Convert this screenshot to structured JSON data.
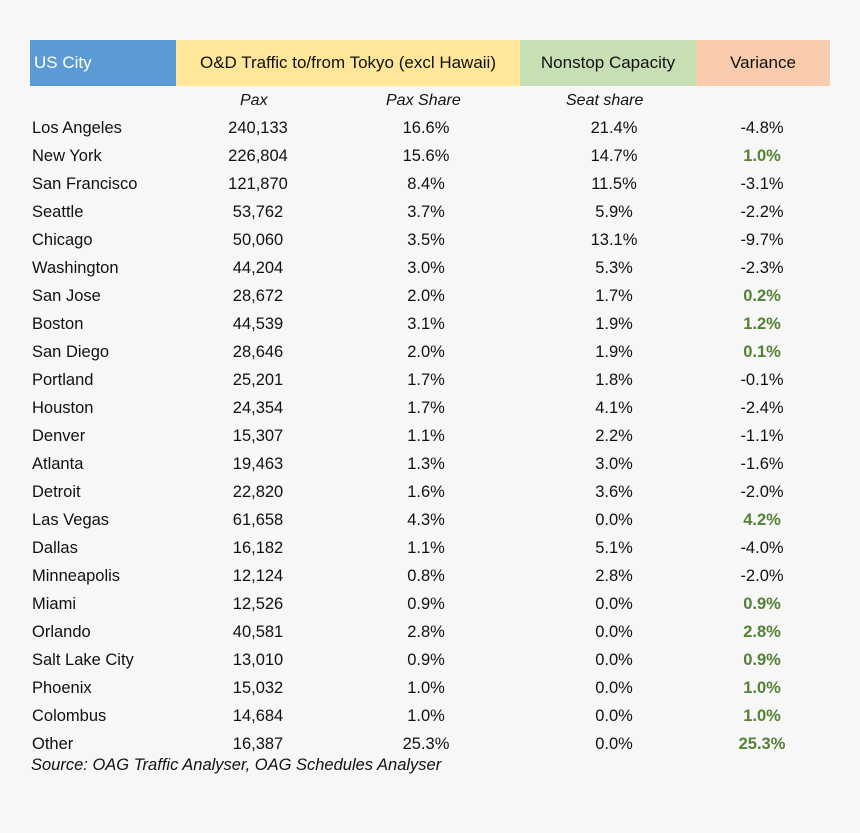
{
  "chart_data": {
    "type": "table",
    "headers": [
      "US City",
      "O&D Traffic to/from Tokyo (excl Hawaii)",
      "Nonstop Capacity",
      "Variance"
    ],
    "subheaders": [
      "Pax",
      "Pax Share",
      "Seat share"
    ],
    "header_colors": [
      "#5b9bd5",
      "#ffe699",
      "#c6e0b4",
      "#f8cbad"
    ],
    "positive_variance_color": "#548235",
    "rows": [
      {
        "city": "Los Angeles",
        "pax": "240,133",
        "pax_share": "16.6%",
        "seat_share": "21.4%",
        "variance": "-4.8%"
      },
      {
        "city": "New York",
        "pax": "226,804",
        "pax_share": "15.6%",
        "seat_share": "14.7%",
        "variance": "1.0%"
      },
      {
        "city": "San Francisco",
        "pax": "121,870",
        "pax_share": "8.4%",
        "seat_share": "11.5%",
        "variance": "-3.1%"
      },
      {
        "city": "Seattle",
        "pax": "53,762",
        "pax_share": "3.7%",
        "seat_share": "5.9%",
        "variance": "-2.2%"
      },
      {
        "city": "Chicago",
        "pax": "50,060",
        "pax_share": "3.5%",
        "seat_share": "13.1%",
        "variance": "-9.7%"
      },
      {
        "city": "Washington",
        "pax": "44,204",
        "pax_share": "3.0%",
        "seat_share": "5.3%",
        "variance": "-2.3%"
      },
      {
        "city": "San Jose",
        "pax": "28,672",
        "pax_share": "2.0%",
        "seat_share": "1.7%",
        "variance": "0.2%"
      },
      {
        "city": "Boston",
        "pax": "44,539",
        "pax_share": "3.1%",
        "seat_share": "1.9%",
        "variance": "1.2%"
      },
      {
        "city": "San Diego",
        "pax": "28,646",
        "pax_share": "2.0%",
        "seat_share": "1.9%",
        "variance": "0.1%"
      },
      {
        "city": "Portland",
        "pax": "25,201",
        "pax_share": "1.7%",
        "seat_share": "1.8%",
        "variance": "-0.1%"
      },
      {
        "city": "Houston",
        "pax": "24,354",
        "pax_share": "1.7%",
        "seat_share": "4.1%",
        "variance": "-2.4%"
      },
      {
        "city": "Denver",
        "pax": "15,307",
        "pax_share": "1.1%",
        "seat_share": "2.2%",
        "variance": "-1.1%"
      },
      {
        "city": "Atlanta",
        "pax": "19,463",
        "pax_share": "1.3%",
        "seat_share": "3.0%",
        "variance": "-1.6%"
      },
      {
        "city": "Detroit",
        "pax": "22,820",
        "pax_share": "1.6%",
        "seat_share": "3.6%",
        "variance": "-2.0%"
      },
      {
        "city": "Las Vegas",
        "pax": "61,658",
        "pax_share": "4.3%",
        "seat_share": "0.0%",
        "variance": "4.2%"
      },
      {
        "city": "Dallas",
        "pax": "16,182",
        "pax_share": "1.1%",
        "seat_share": "5.1%",
        "variance": "-4.0%"
      },
      {
        "city": "Minneapolis",
        "pax": "12,124",
        "pax_share": "0.8%",
        "seat_share": "2.8%",
        "variance": "-2.0%"
      },
      {
        "city": "Miami",
        "pax": "12,526",
        "pax_share": "0.9%",
        "seat_share": "0.0%",
        "variance": "0.9%"
      },
      {
        "city": "Orlando",
        "pax": "40,581",
        "pax_share": "2.8%",
        "seat_share": "0.0%",
        "variance": "2.8%"
      },
      {
        "city": "Salt Lake City",
        "pax": "13,010",
        "pax_share": "0.9%",
        "seat_share": "0.0%",
        "variance": "0.9%"
      },
      {
        "city": "Phoenix",
        "pax": "15,032",
        "pax_share": "1.0%",
        "seat_share": "0.0%",
        "variance": "1.0%"
      },
      {
        "city": "Colombus",
        "pax": "14,684",
        "pax_share": "1.0%",
        "seat_share": "0.0%",
        "variance": "1.0%"
      },
      {
        "city": "Other",
        "pax": "16,387",
        "pax_share": "25.3%",
        "seat_share": "0.0%",
        "variance": "25.3%"
      }
    ],
    "source": "Source: OAG Traffic Analyser, OAG Schedules Analyser"
  }
}
